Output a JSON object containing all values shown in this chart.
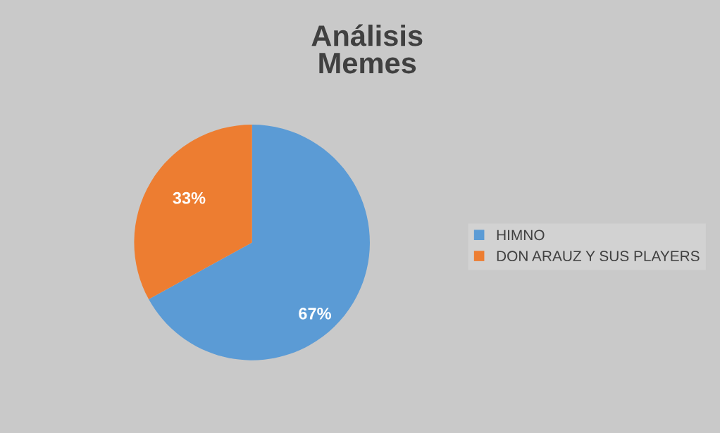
{
  "chart_data": {
    "type": "pie",
    "title": "Análisis\nMemes",
    "categories": [
      "HIMNO",
      "DON ARAUZ Y SUS PLAYERS"
    ],
    "values": [
      67,
      33
    ],
    "colors": [
      "#5b9bd5",
      "#ed7d31"
    ],
    "value_labels": [
      "67%",
      "33%"
    ],
    "legend": "right"
  }
}
